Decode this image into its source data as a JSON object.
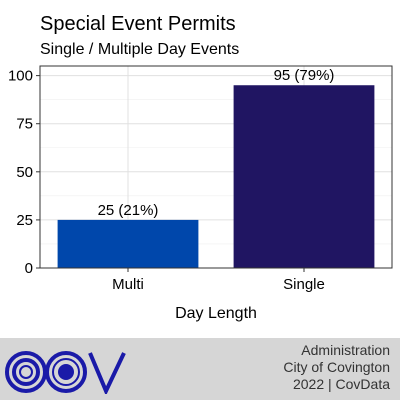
{
  "chart_data": {
    "type": "bar",
    "title": "Special Event Permits",
    "subtitle": "Single / Multiple Day Events",
    "xlabel": "Day Length",
    "ylabel": "",
    "categories": [
      "Multi",
      "Single"
    ],
    "values": [
      25,
      95
    ],
    "data_labels": [
      "25 (21%)",
      "95 (79%)"
    ],
    "bar_colors": [
      "#0047ab",
      "#201562"
    ],
    "ylim": [
      0,
      105
    ],
    "yticks": [
      0,
      25,
      50,
      75,
      100
    ],
    "grid": true
  },
  "footer": {
    "lines": [
      "Administration",
      "City of Covington",
      "2022 | CovData"
    ],
    "logo_text": "COV",
    "background": "#d6d6d6",
    "logo_color": "#1a1aa8"
  }
}
